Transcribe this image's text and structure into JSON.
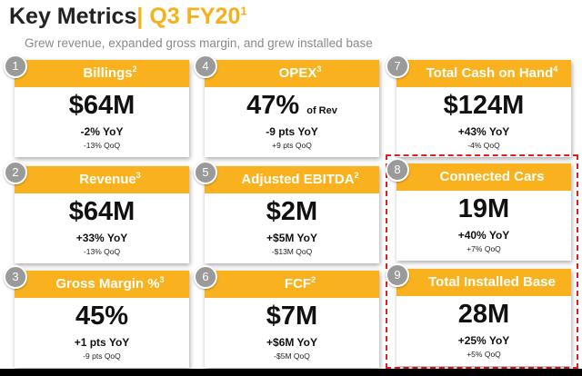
{
  "header": {
    "title_main": "Key Metrics",
    "title_sep": "|",
    "title_period": "Q3 FY20",
    "title_sup": "1",
    "subtitle": "Grew revenue, expanded gross margin, and grew installed base"
  },
  "cards": [
    {
      "num": "1",
      "title": "Billings",
      "sup": "2",
      "value": "$64M",
      "value_suffix": "",
      "yoy": "-2% YoY",
      "qoq": "-13% QoQ"
    },
    {
      "num": "2",
      "title": "Revenue",
      "sup": "3",
      "value": "$64M",
      "value_suffix": "",
      "yoy": "+33% YoY",
      "qoq": "-13% QoQ"
    },
    {
      "num": "3",
      "title": "Gross Margin %",
      "sup": "3",
      "value": "45%",
      "value_suffix": "",
      "yoy": "+1 pts YoY",
      "qoq": "-9 pts QoQ"
    },
    {
      "num": "4",
      "title": "OPEX",
      "sup": "3",
      "value": "47%",
      "value_suffix": "of Rev",
      "yoy": "-9 pts YoY",
      "qoq": "+9 pts QoQ"
    },
    {
      "num": "5",
      "title": "Adjusted EBITDA",
      "sup": "2",
      "value": "$2M",
      "value_suffix": "",
      "yoy": "+$5M YoY",
      "qoq": "-$13M QoQ"
    },
    {
      "num": "6",
      "title": "FCF",
      "sup": "2",
      "value": "$7M",
      "value_suffix": "",
      "yoy": "+$6M YoY",
      "qoq": "-$5M QoQ"
    },
    {
      "num": "7",
      "title": "Total Cash on Hand",
      "sup": "4",
      "value": "$124M",
      "value_suffix": "",
      "yoy": "+43% YoY",
      "qoq": "-4% QoQ"
    },
    {
      "num": "8",
      "title": "Connected Cars",
      "sup": "",
      "value": "19M",
      "value_suffix": "",
      "yoy": "+40% YoY",
      "qoq": "+7% QoQ"
    },
    {
      "num": "9",
      "title": "Total Installed Base",
      "sup": "",
      "value": "28M",
      "value_suffix": "",
      "yoy": "+25% YoY",
      "qoq": "+5% QoQ"
    }
  ],
  "colors": {
    "accent": "#f9b11d",
    "badge": "#9a9a9a",
    "highlight_border": "#e02020"
  }
}
